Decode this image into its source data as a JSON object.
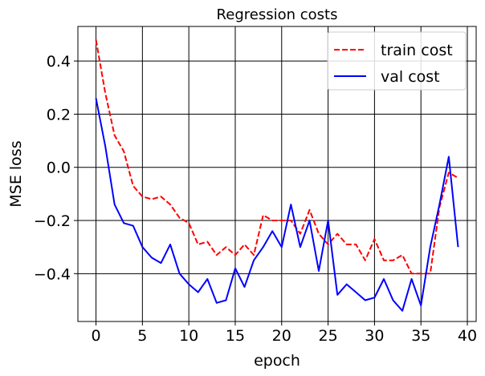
{
  "chart_data": {
    "type": "line",
    "title": "Regression costs",
    "xlabel": "epoch",
    "ylabel": "MSE loss",
    "xlim": [
      -1.95,
      40.95
    ],
    "ylim": [
      -0.58,
      0.53
    ],
    "xticks": [
      0,
      5,
      10,
      15,
      20,
      25,
      30,
      35,
      40
    ],
    "yticks": [
      -0.4,
      -0.2,
      0.0,
      0.2,
      0.4
    ],
    "xtick_labels": [
      "0",
      "5",
      "10",
      "15",
      "20",
      "25",
      "30",
      "35",
      "40"
    ],
    "ytick_labels": [
      "−0.4",
      "−0.2",
      "0.0",
      "0.2",
      "0.4"
    ],
    "grid": true,
    "legend_position": "top-right",
    "x": [
      0,
      1,
      2,
      3,
      4,
      5,
      6,
      7,
      8,
      9,
      10,
      11,
      12,
      13,
      14,
      15,
      16,
      17,
      18,
      19,
      20,
      21,
      22,
      23,
      24,
      25,
      26,
      27,
      28,
      29,
      30,
      31,
      32,
      33,
      34,
      35,
      36,
      37,
      38,
      39
    ],
    "series": [
      {
        "name": "train cost",
        "color": "#ff0000",
        "style": "dashed",
        "values": [
          0.48,
          0.28,
          0.12,
          0.06,
          -0.07,
          -0.11,
          -0.12,
          -0.11,
          -0.14,
          -0.19,
          -0.21,
          -0.29,
          -0.28,
          -0.33,
          -0.3,
          -0.33,
          -0.29,
          -0.33,
          -0.18,
          -0.2,
          -0.2,
          -0.2,
          -0.25,
          -0.16,
          -0.25,
          -0.29,
          -0.25,
          -0.29,
          -0.29,
          -0.35,
          -0.27,
          -0.35,
          -0.35,
          -0.33,
          -0.4,
          -0.4,
          -0.4,
          -0.15,
          -0.02,
          -0.04
        ]
      },
      {
        "name": "val cost",
        "color": "#0000ff",
        "style": "solid",
        "values": [
          0.26,
          0.08,
          -0.14,
          -0.21,
          -0.22,
          -0.3,
          -0.34,
          -0.36,
          -0.29,
          -0.4,
          -0.44,
          -0.47,
          -0.42,
          -0.51,
          -0.5,
          -0.38,
          -0.45,
          -0.35,
          -0.3,
          -0.24,
          -0.3,
          -0.14,
          -0.3,
          -0.2,
          -0.39,
          -0.2,
          -0.48,
          -0.44,
          -0.47,
          -0.5,
          -0.49,
          -0.42,
          -0.5,
          -0.54,
          -0.42,
          -0.52,
          -0.3,
          -0.14,
          0.04,
          -0.3
        ]
      }
    ]
  }
}
